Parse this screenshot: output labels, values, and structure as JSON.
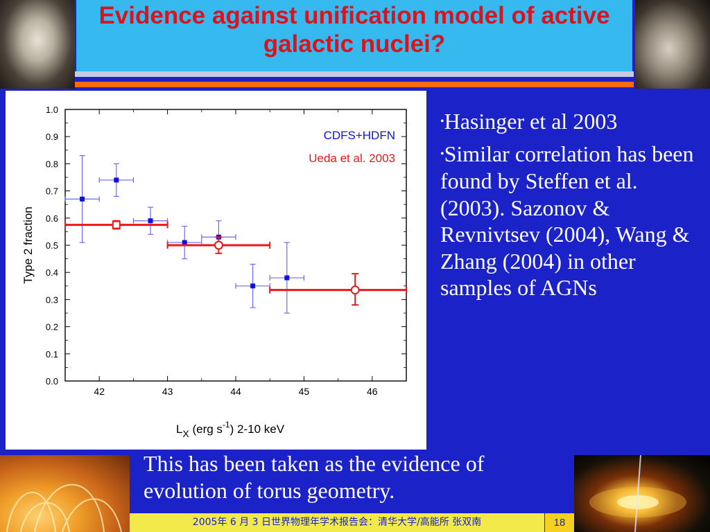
{
  "slide": {
    "title": "Evidence against unification model of active galactic nuclei?",
    "bullets": [
      "Hasinger et al 2003",
      "Similar correlation has been found by Steffen et al. (2003). Sazonov & Revnivtsev (2004), Wang & Zhang (2004) in other samples of AGNs"
    ],
    "bullet_marker": "•",
    "caption": "This has been taken as the evidence of evolution of  torus geometry.",
    "footer": "2005年 6 月 3 日世界物理年学术报告会：清华大学/高能所 张双南",
    "page_number": "18"
  },
  "colors": {
    "background": "#1a22c8",
    "title_box": "#35b9ee",
    "title_text": "#d8141e",
    "accent_bar": "#ff6a10",
    "footer_bg": "#f2e94a",
    "series_blue": "#1010e0",
    "series_red": "#e81818"
  },
  "chart_data": {
    "type": "scatter",
    "xlabel": "L",
    "xlabel_sub": "X",
    "xlabel_rest": " (erg s",
    "xlabel_sup": "-1",
    "xlabel_end": ") 2-10 keV",
    "ylabel": "Type 2 fraction",
    "xlim": [
      41.5,
      46.5
    ],
    "ylim": [
      0.0,
      1.0
    ],
    "xticks": [
      "42",
      "43",
      "44",
      "45",
      "46"
    ],
    "yticks": [
      "0.0",
      "0.1",
      "0.2",
      "0.3",
      "0.4",
      "0.5",
      "0.6",
      "0.7",
      "0.8",
      "0.9",
      "1.0"
    ],
    "grid": false,
    "legend_position": "top-right",
    "series": [
      {
        "name": "CDFS+HDFN",
        "marker": "filled-square",
        "points": [
          {
            "x": 41.75,
            "y": 0.67,
            "xerr": 0.25,
            "ylo": 0.51,
            "yhi": 0.83
          },
          {
            "x": 42.25,
            "y": 0.74,
            "xerr": 0.25,
            "ylo": 0.68,
            "yhi": 0.8
          },
          {
            "x": 42.75,
            "y": 0.59,
            "xerr": 0.25,
            "ylo": 0.54,
            "yhi": 0.64
          },
          {
            "x": 43.25,
            "y": 0.51,
            "xerr": 0.25,
            "ylo": 0.45,
            "yhi": 0.57
          },
          {
            "x": 43.75,
            "y": 0.53,
            "xerr": 0.25,
            "ylo": 0.47,
            "yhi": 0.59
          },
          {
            "x": 44.25,
            "y": 0.35,
            "xerr": 0.25,
            "ylo": 0.27,
            "yhi": 0.43
          },
          {
            "x": 44.75,
            "y": 0.38,
            "xerr": 0.25,
            "ylo": 0.25,
            "yhi": 0.51
          }
        ]
      },
      {
        "name": "Ueda et al. 2003",
        "marker": "open-symbol",
        "points": [
          {
            "x": 42.25,
            "y": 0.575,
            "xlo": 41.5,
            "xhi": 43.0,
            "ylo": 0.56,
            "yhi": 0.59
          },
          {
            "x": 43.75,
            "y": 0.5,
            "xlo": 43.0,
            "xhi": 44.5,
            "ylo": 0.47,
            "yhi": 0.53
          },
          {
            "x": 45.75,
            "y": 0.335,
            "xlo": 44.5,
            "xhi": 46.5,
            "ylo": 0.28,
            "yhi": 0.395
          }
        ]
      }
    ]
  }
}
